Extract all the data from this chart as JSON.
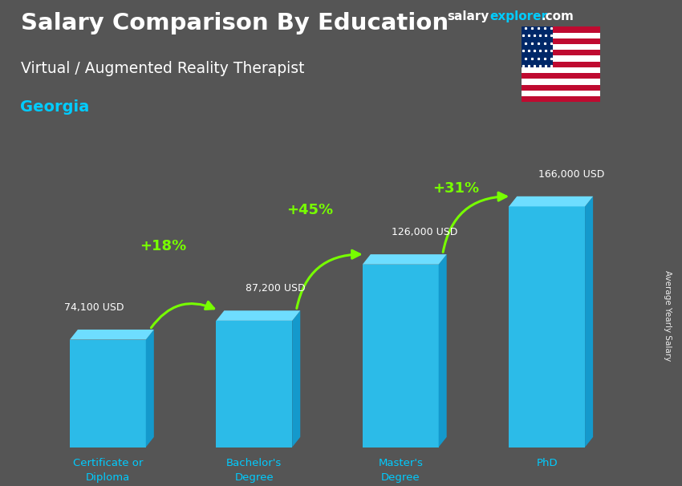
{
  "title_line1": "Salary Comparison By Education",
  "title_line2": "Virtual / Augmented Reality Therapist",
  "title_line3": "Georgia",
  "categories": [
    "Certificate or\nDiploma",
    "Bachelor's\nDegree",
    "Master's\nDegree",
    "PhD"
  ],
  "values": [
    74100,
    87200,
    126000,
    166000
  ],
  "value_labels": [
    "74,100 USD",
    "87,200 USD",
    "126,000 USD",
    "166,000 USD"
  ],
  "pct_labels": [
    "+18%",
    "+45%",
    "+31%"
  ],
  "bar_color_front": "#29C5F6",
  "bar_color_top": "#6EDDFF",
  "bar_color_side": "#1499CC",
  "pct_color": "#77FF00",
  "title_color": "#FFFFFF",
  "subtitle_color": "#FFFFFF",
  "georgia_color": "#00CCFF",
  "value_label_color": "#FFFFFF",
  "ylabel_text": "Average Yearly Salary",
  "brand_color_salary": "#FFFFFF",
  "brand_color_explorer": "#00CCFF",
  "brand_color_com": "#FFFFFF",
  "bg_color": "#555555",
  "flag_blue": "#002868",
  "flag_red": "#BF0A30"
}
